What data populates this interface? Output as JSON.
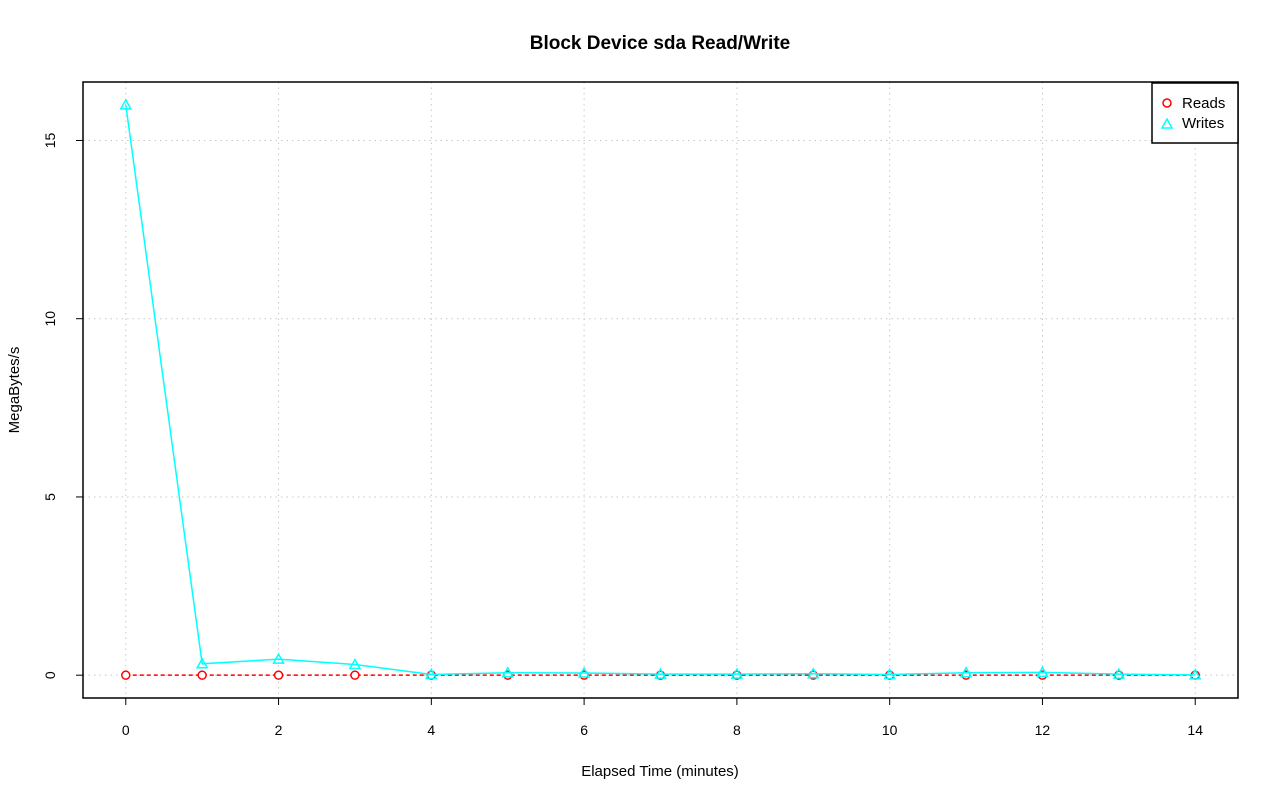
{
  "chart_data": {
    "type": "line",
    "title": "Block Device sda Read/Write",
    "xlabel": "Elapsed Time (minutes)",
    "ylabel": "MegaBytes/s",
    "xlim": [
      -0.56,
      14.56
    ],
    "ylim": [
      -0.64,
      16.64
    ],
    "x_ticks": [
      0,
      2,
      4,
      6,
      8,
      10,
      12,
      14
    ],
    "y_ticks": [
      0,
      5,
      10,
      15
    ],
    "grid": true,
    "legend_position": "top-right",
    "x": [
      0,
      1,
      2,
      3,
      4,
      5,
      6,
      7,
      8,
      9,
      10,
      11,
      12,
      13,
      14
    ],
    "series": [
      {
        "name": "Reads",
        "color": "#ff0000",
        "marker": "circle",
        "line_style": "dashed",
        "values": [
          0,
          0,
          0,
          0,
          0,
          0,
          0,
          0,
          0,
          0,
          0,
          0,
          0,
          0,
          0
        ]
      },
      {
        "name": "Writes",
        "color": "#00ffff",
        "marker": "triangle",
        "line_style": "solid",
        "values": [
          16.0,
          0.32,
          0.45,
          0.3,
          0.02,
          0.07,
          0.06,
          0.03,
          0.03,
          0.04,
          0.02,
          0.07,
          0.08,
          0.03,
          0.01
        ]
      }
    ]
  }
}
